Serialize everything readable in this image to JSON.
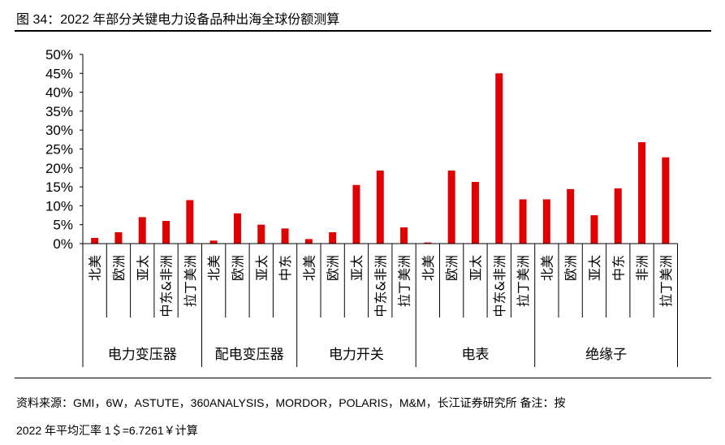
{
  "header": {
    "title": "图 34：2022 年部分关键电力设备品种出海全球份额测算"
  },
  "footer": {
    "source": "资料来源：GMI，6W，ASTUTE，360ANALYSIS，MORDOR，POLARIS，M&M，长江证券研究所 备注：按",
    "note": "2022 年平均汇率 1＄=6.7261￥计算"
  },
  "chart_data": {
    "type": "bar",
    "ylim": [
      0,
      50
    ],
    "yticks": [
      "0%",
      "5%",
      "10%",
      "15%",
      "20%",
      "25%",
      "30%",
      "35%",
      "40%",
      "45%",
      "50%"
    ],
    "bar_color": "#E00000",
    "groups": [
      {
        "name": "电力变压器",
        "categories": [
          "北美",
          "欧洲",
          "亚太",
          "中东&非洲",
          "拉丁美洲"
        ],
        "values": [
          1.5,
          3.0,
          7.0,
          6.0,
          11.5
        ]
      },
      {
        "name": "配电变压器",
        "categories": [
          "北美",
          "欧洲",
          "亚太",
          "中东"
        ],
        "values": [
          0.8,
          8.0,
          5.0,
          4.0
        ]
      },
      {
        "name": "电力开关",
        "categories": [
          "北美",
          "欧洲",
          "亚太",
          "中东&非洲",
          "拉丁美洲"
        ],
        "values": [
          1.2,
          3.0,
          15.5,
          19.3,
          4.3
        ]
      },
      {
        "name": "电表",
        "categories": [
          "北美",
          "欧洲",
          "亚太",
          "中东&非洲",
          "拉丁美洲"
        ],
        "values": [
          0.3,
          19.3,
          16.3,
          45.0,
          11.7
        ]
      },
      {
        "name": "绝缘子",
        "categories": [
          "北美",
          "欧洲",
          "亚太",
          "中东",
          "非洲",
          "拉丁美洲"
        ],
        "values": [
          11.7,
          14.4,
          7.5,
          14.6,
          26.8,
          22.8
        ]
      }
    ]
  }
}
